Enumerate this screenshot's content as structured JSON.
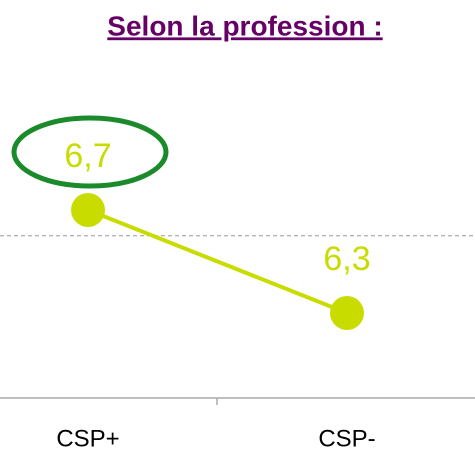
{
  "chart_data": {
    "type": "line",
    "title": "Selon la profession :",
    "categories": [
      "CSP+",
      "CSP-"
    ],
    "series": [
      {
        "color": "#c8dc00",
        "values": [
          6.7,
          6.3
        ],
        "value_labels": [
          "6,7",
          "6,3"
        ]
      }
    ],
    "reference_line": 6.6
  }
}
